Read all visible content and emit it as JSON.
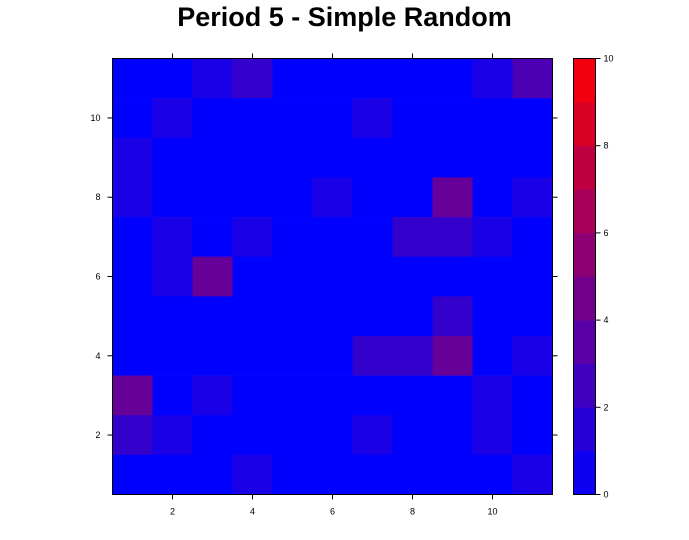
{
  "chart_data": {
    "type": "heatmap",
    "title": "Period 5 - Simple Random",
    "xlabel": "",
    "ylabel": "",
    "x_range": [
      0.5,
      11.5
    ],
    "y_range": [
      0.5,
      11.5
    ],
    "x_ticks": [
      "2",
      "4",
      "6",
      "8",
      "10"
    ],
    "y_ticks": [
      "2",
      "4",
      "6",
      "8",
      "10"
    ],
    "colorbar": {
      "min": 0,
      "max": 10,
      "ticks": [
        "0",
        "2",
        "4",
        "6",
        "8",
        "10"
      ],
      "levels": 10,
      "low_color": "#0000ff",
      "high_color": "#ff0000"
    },
    "rows_top_to_bottom_y": [
      11,
      10,
      9,
      8,
      7,
      6,
      5,
      4,
      3,
      2,
      1
    ],
    "values": [
      [
        0,
        0,
        1,
        2,
        0,
        0,
        0,
        0,
        0,
        1,
        3
      ],
      [
        0,
        1,
        0,
        0,
        0,
        0,
        1,
        0,
        0,
        0,
        0
      ],
      [
        1,
        0,
        0,
        0,
        0,
        0,
        0,
        0,
        0,
        0,
        0
      ],
      [
        1,
        0,
        0,
        0,
        0,
        1,
        0,
        0,
        4,
        0,
        1
      ],
      [
        0,
        1,
        0,
        1,
        0,
        0,
        0,
        2,
        2,
        1,
        0
      ],
      [
        0,
        1,
        4,
        0,
        0,
        0,
        0,
        0,
        0,
        0,
        0
      ],
      [
        0,
        0,
        0,
        0,
        0,
        0,
        0,
        0,
        2,
        0,
        0
      ],
      [
        0,
        0,
        0,
        0,
        0,
        0,
        2,
        2,
        4,
        0,
        1
      ],
      [
        4,
        0,
        1,
        0,
        0,
        0,
        0,
        0,
        0,
        1,
        0
      ],
      [
        2,
        1,
        0,
        0,
        0,
        0,
        1,
        0,
        0,
        1,
        0
      ],
      [
        0,
        0,
        0,
        1,
        0,
        0,
        0,
        0,
        0,
        0,
        1
      ]
    ]
  }
}
